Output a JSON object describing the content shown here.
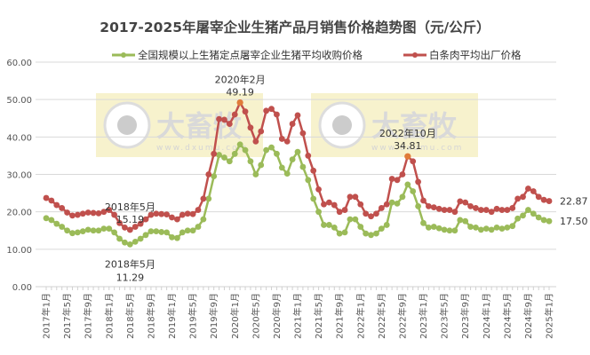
{
  "chart_data": {
    "type": "line",
    "title": "2017-2025年屠宰企业生猪产品月销售价格趋势图（元/公斤）",
    "xlabel": "",
    "ylabel": "",
    "ylim": [
      0,
      60
    ],
    "yticks": [
      "0.00",
      "10.00",
      "20.00",
      "30.00",
      "40.00",
      "50.00",
      "60.00"
    ],
    "grid": true,
    "legend_position": "top",
    "x_tick_labels": [
      "2017年1月",
      "2017年5月",
      "2017年9月",
      "2018年1月",
      "2018年5月",
      "2018年9月",
      "2019年1月",
      "2019年5月",
      "2019年9月",
      "2020年1月",
      "2020年5月",
      "2020年9月",
      "2021年1月",
      "2021年5月",
      "2021年9月",
      "2022年1月",
      "2022年5月",
      "2022年9月",
      "2023年1月",
      "2023年5月",
      "2023年9月",
      "2024年1月",
      "2024年5月",
      "2024年9月",
      "2025年1月"
    ],
    "series": [
      {
        "name": "全国规模以上生猪定点屠宰企业生猪平均收购价格",
        "color": "#9bbb59",
        "values": [
          18.3,
          17.8,
          16.8,
          16.0,
          15.0,
          14.3,
          14.5,
          14.8,
          15.2,
          15.0,
          15.0,
          15.5,
          15.5,
          14.5,
          12.8,
          11.8,
          11.29,
          12.0,
          12.8,
          13.8,
          14.8,
          14.8,
          14.6,
          14.5,
          13.2,
          13.0,
          14.5,
          15.0,
          15.0,
          16.0,
          18.0,
          23.5,
          29.5,
          35.2,
          34.5,
          33.5,
          35.5,
          38.0,
          36.5,
          33.5,
          30.0,
          32.5,
          36.5,
          37.2,
          35.5,
          31.8,
          30.2,
          34.0,
          36.0,
          32.0,
          28.5,
          23.5,
          20.0,
          16.5,
          16.5,
          15.8,
          14.2,
          14.5,
          18.0,
          18.0,
          16.0,
          14.2,
          13.8,
          14.2,
          15.5,
          16.5,
          22.5,
          22.2,
          24.0,
          27.3,
          25.5,
          21.5,
          17.0,
          15.8,
          16.0,
          15.6,
          15.2,
          15.0,
          15.0,
          17.8,
          17.5,
          16.0,
          15.8,
          15.2,
          15.5,
          15.2,
          15.8,
          15.5,
          15.8,
          16.2,
          18.2,
          19.0,
          20.5,
          19.5,
          18.5,
          17.8,
          17.5
        ]
      },
      {
        "name": "白条肉平均出厂价格",
        "color": "#c0504d",
        "values": [
          23.7,
          23.0,
          21.8,
          21.0,
          19.8,
          19.0,
          19.2,
          19.5,
          19.8,
          19.7,
          19.6,
          20.0,
          20.5,
          19.2,
          17.0,
          15.8,
          15.19,
          16.0,
          16.8,
          18.0,
          19.2,
          19.5,
          19.4,
          19.3,
          18.5,
          18.0,
          19.2,
          19.5,
          19.4,
          20.5,
          23.5,
          30.0,
          35.5,
          44.8,
          44.6,
          43.5,
          46.0,
          49.19,
          46.8,
          42.5,
          38.8,
          41.5,
          47.0,
          47.5,
          46.0,
          39.5,
          38.8,
          43.5,
          45.8,
          41.0,
          35.0,
          31.0,
          26.0,
          22.0,
          22.5,
          21.8,
          20.0,
          20.5,
          24.0,
          24.0,
          22.0,
          19.5,
          18.8,
          19.5,
          21.0,
          22.0,
          28.8,
          28.5,
          30.0,
          34.81,
          33.5,
          28.0,
          23.0,
          21.5,
          21.2,
          20.8,
          20.5,
          20.5,
          20.0,
          22.8,
          22.5,
          21.5,
          21.0,
          20.5,
          20.5,
          20.0,
          20.8,
          20.5,
          20.5,
          21.0,
          23.5,
          24.0,
          26.2,
          25.5,
          24.0,
          23.2,
          22.87
        ]
      }
    ],
    "annotations": [
      {
        "series": 1,
        "index": 16,
        "date": "2018年5月",
        "value": "15.19",
        "position": "above"
      },
      {
        "series": 0,
        "index": 16,
        "date": "2018年5月",
        "value": "11.29",
        "position": "below"
      },
      {
        "series": 1,
        "index": 37,
        "date": "2020年2月",
        "value": "49.19",
        "position": "above"
      },
      {
        "series": 1,
        "index": 69,
        "date": "2022年10月",
        "value": "34.81",
        "position": "above"
      },
      {
        "series": 1,
        "index": 96,
        "date": "",
        "value": "22.87",
        "position": "right"
      },
      {
        "series": 0,
        "index": 96,
        "date": "",
        "value": "17.50",
        "position": "right"
      }
    ],
    "highlight_color": "#e07b39",
    "watermark": {
      "text": "大畜牧",
      "subtext": "www.dxumu.com"
    }
  }
}
